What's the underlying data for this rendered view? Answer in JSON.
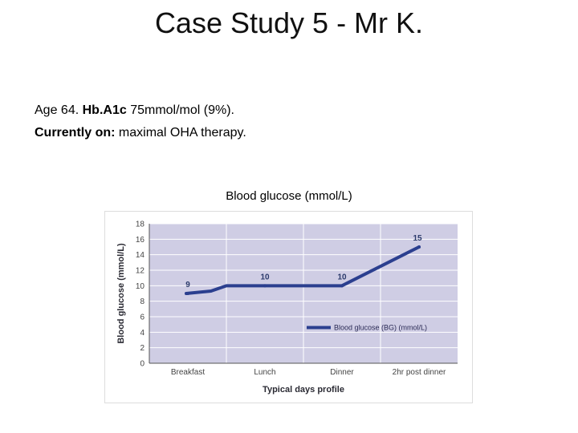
{
  "slide": {
    "title": "Case Study 5 - Mr K.",
    "line1": {
      "age": "Age 64.",
      "hba1c_label": "Hb.A1c",
      "hba1c_value": "75mmol/mol (9%)."
    },
    "line2": {
      "label": "Currently on:",
      "value": "maximal OHA therapy."
    },
    "chart_heading": "Blood glucose (mmol/L)"
  },
  "colors": {
    "plot_background": "#cfcde4",
    "grid": "#ffffff",
    "line": "#2b3f8f"
  },
  "chart_data": {
    "type": "line",
    "categories": [
      "Breakfast",
      "Lunch",
      "Dinner",
      "2hr post dinner"
    ],
    "series": [
      {
        "name": "Blood glucose (BG) (mmol/L)",
        "values": [
          9,
          10,
          10,
          15
        ],
        "data_labels": [
          "9",
          "10",
          "10",
          "15"
        ]
      }
    ],
    "xlabel": "Typical days profile",
    "ylabel": "Blood glucose (mmol/L)",
    "ylim": [
      0,
      18
    ],
    "yticks": [
      0,
      2,
      4,
      6,
      8,
      10,
      12,
      14,
      16,
      18
    ],
    "grid": true,
    "legend_position": "bottom-right"
  }
}
